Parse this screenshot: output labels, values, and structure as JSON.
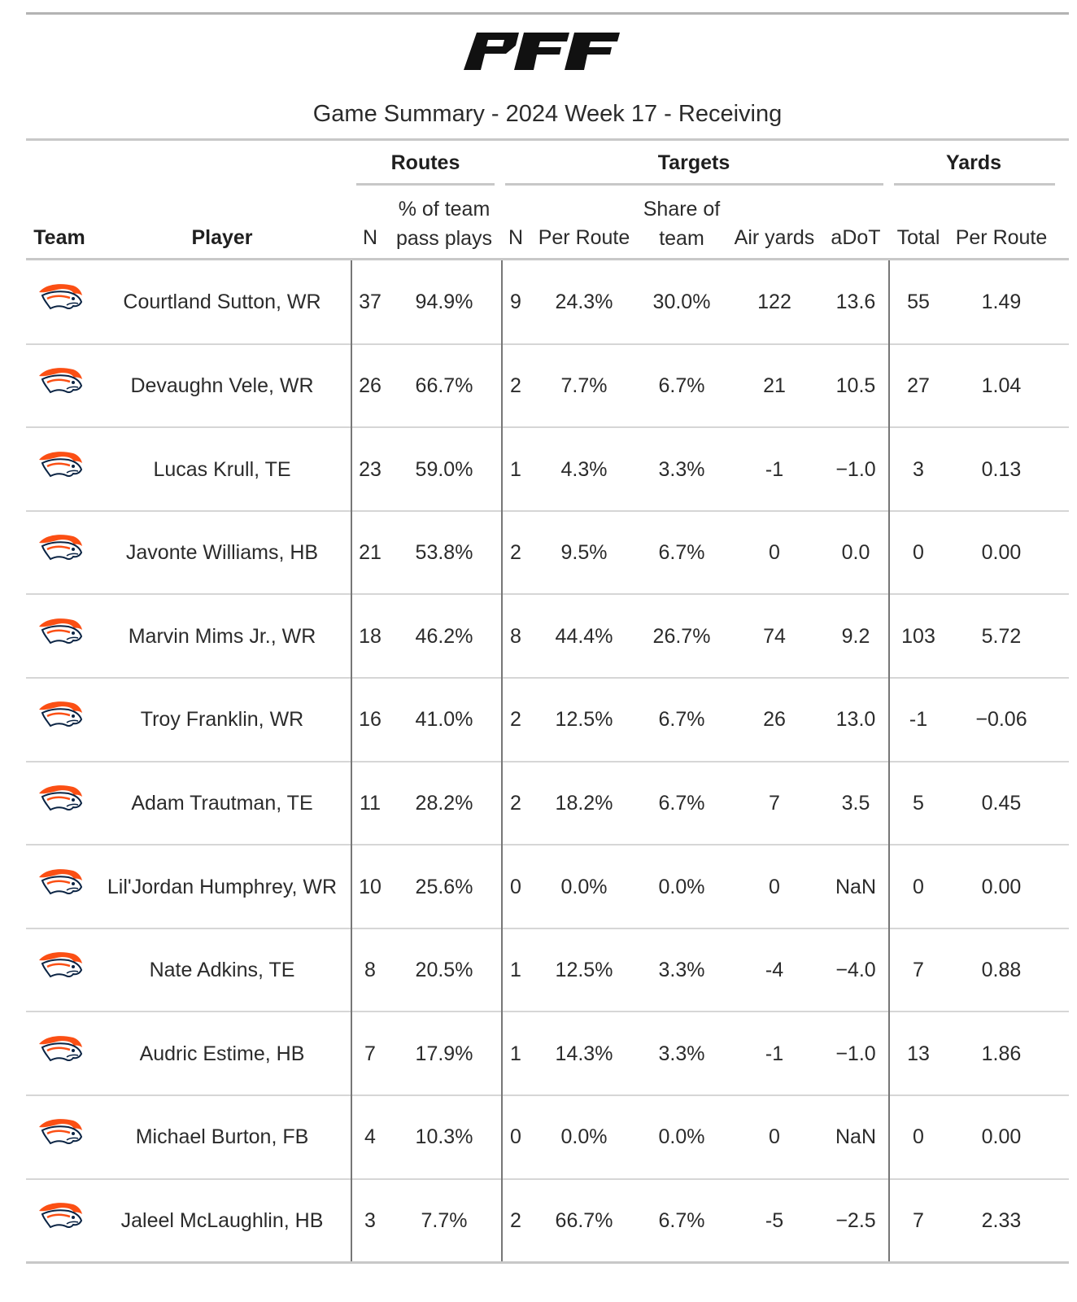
{
  "brand": {
    "logo_text": "PFF"
  },
  "title": "Game Summary - 2024 Week 17 - Receiving",
  "colors": {
    "logo": "#111111",
    "broncos_orange": "#FB4F14",
    "broncos_navy": "#0A2343",
    "rule": "#c8c8c8"
  },
  "chart_data": {
    "type": "table",
    "title": "Game Summary - 2024 Week 17 - Receiving",
    "spanners": [
      "Routes",
      "Targets",
      "Yards"
    ],
    "columns": [
      "Team",
      "Player",
      "N",
      "% of team pass plays",
      "N",
      "Per Route",
      "Share of team",
      "Air yards",
      "aDoT",
      "Total",
      "Per Route"
    ],
    "team_icon": "denver-broncos-logo-icon",
    "rows": [
      {
        "player": "Courtland Sutton, WR",
        "routes_n": "37",
        "routes_pct": "94.9%",
        "targets_n": "9",
        "targets_per_route": "24.3%",
        "targets_share": "30.0%",
        "air_yards": "122",
        "adot": "13.6",
        "yards_total": "55",
        "yards_per_route": "1.49"
      },
      {
        "player": "Devaughn Vele, WR",
        "routes_n": "26",
        "routes_pct": "66.7%",
        "targets_n": "2",
        "targets_per_route": "7.7%",
        "targets_share": "6.7%",
        "air_yards": "21",
        "adot": "10.5",
        "yards_total": "27",
        "yards_per_route": "1.04"
      },
      {
        "player": "Lucas Krull, TE",
        "routes_n": "23",
        "routes_pct": "59.0%",
        "targets_n": "1",
        "targets_per_route": "4.3%",
        "targets_share": "3.3%",
        "air_yards": "-1",
        "adot": "−1.0",
        "yards_total": "3",
        "yards_per_route": "0.13"
      },
      {
        "player": "Javonte Williams, HB",
        "routes_n": "21",
        "routes_pct": "53.8%",
        "targets_n": "2",
        "targets_per_route": "9.5%",
        "targets_share": "6.7%",
        "air_yards": "0",
        "adot": "0.0",
        "yards_total": "0",
        "yards_per_route": "0.00"
      },
      {
        "player": "Marvin Mims Jr., WR",
        "routes_n": "18",
        "routes_pct": "46.2%",
        "targets_n": "8",
        "targets_per_route": "44.4%",
        "targets_share": "26.7%",
        "air_yards": "74",
        "adot": "9.2",
        "yards_total": "103",
        "yards_per_route": "5.72"
      },
      {
        "player": "Troy Franklin, WR",
        "routes_n": "16",
        "routes_pct": "41.0%",
        "targets_n": "2",
        "targets_per_route": "12.5%",
        "targets_share": "6.7%",
        "air_yards": "26",
        "adot": "13.0",
        "yards_total": "-1",
        "yards_per_route": "−0.06"
      },
      {
        "player": "Adam Trautman, TE",
        "routes_n": "11",
        "routes_pct": "28.2%",
        "targets_n": "2",
        "targets_per_route": "18.2%",
        "targets_share": "6.7%",
        "air_yards": "7",
        "adot": "3.5",
        "yards_total": "5",
        "yards_per_route": "0.45"
      },
      {
        "player": "Lil'Jordan Humphrey, WR",
        "routes_n": "10",
        "routes_pct": "25.6%",
        "targets_n": "0",
        "targets_per_route": "0.0%",
        "targets_share": "0.0%",
        "air_yards": "0",
        "adot": "NaN",
        "yards_total": "0",
        "yards_per_route": "0.00"
      },
      {
        "player": "Nate Adkins, TE",
        "routes_n": "8",
        "routes_pct": "20.5%",
        "targets_n": "1",
        "targets_per_route": "12.5%",
        "targets_share": "3.3%",
        "air_yards": "-4",
        "adot": "−4.0",
        "yards_total": "7",
        "yards_per_route": "0.88"
      },
      {
        "player": "Audric Estime, HB",
        "routes_n": "7",
        "routes_pct": "17.9%",
        "targets_n": "1",
        "targets_per_route": "14.3%",
        "targets_share": "3.3%",
        "air_yards": "-1",
        "adot": "−1.0",
        "yards_total": "13",
        "yards_per_route": "1.86"
      },
      {
        "player": "Michael Burton, FB",
        "routes_n": "4",
        "routes_pct": "10.3%",
        "targets_n": "0",
        "targets_per_route": "0.0%",
        "targets_share": "0.0%",
        "air_yards": "0",
        "adot": "NaN",
        "yards_total": "0",
        "yards_per_route": "0.00"
      },
      {
        "player": "Jaleel McLaughlin, HB",
        "routes_n": "3",
        "routes_pct": "7.7%",
        "targets_n": "2",
        "targets_per_route": "66.7%",
        "targets_share": "6.7%",
        "air_yards": "-5",
        "adot": "−2.5",
        "yards_total": "7",
        "yards_per_route": "2.33"
      }
    ]
  }
}
